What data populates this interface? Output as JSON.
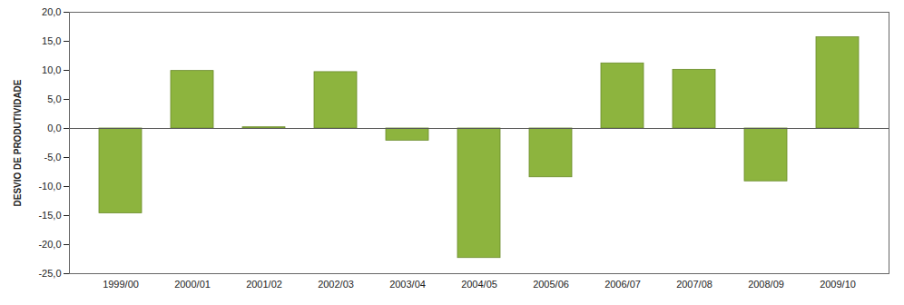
{
  "chart_data": {
    "type": "bar",
    "y_label": "DESVIO DE PRODUTIVIDADE",
    "categories": [
      "1999/00",
      "2000/01",
      "2001/02",
      "2002/03",
      "2003/04",
      "2004/05",
      "2005/06",
      "2006/07",
      "2007/08",
      "2008/09",
      "2009/10"
    ],
    "values": [
      -14.6,
      9.9,
      0.2,
      9.7,
      -2.1,
      -22.3,
      -8.4,
      11.2,
      10.1,
      -9.1,
      15.7
    ],
    "color": "#8db43e",
    "ylim": [
      -25,
      20
    ],
    "yticks": [
      {
        "value": -25,
        "label": "-25,0"
      },
      {
        "value": -20,
        "label": "-20,0"
      },
      {
        "value": -15,
        "label": "-15,0"
      },
      {
        "value": -10,
        "label": "-10,0"
      },
      {
        "value": -5,
        "label": "-5,0"
      },
      {
        "value": 0,
        "label": "0,0"
      },
      {
        "value": 5,
        "label": "5,0"
      },
      {
        "value": 10,
        "label": "10,0"
      },
      {
        "value": 15,
        "label": "15,0"
      },
      {
        "value": 20,
        "label": "20,0"
      }
    ],
    "grid": false
  }
}
